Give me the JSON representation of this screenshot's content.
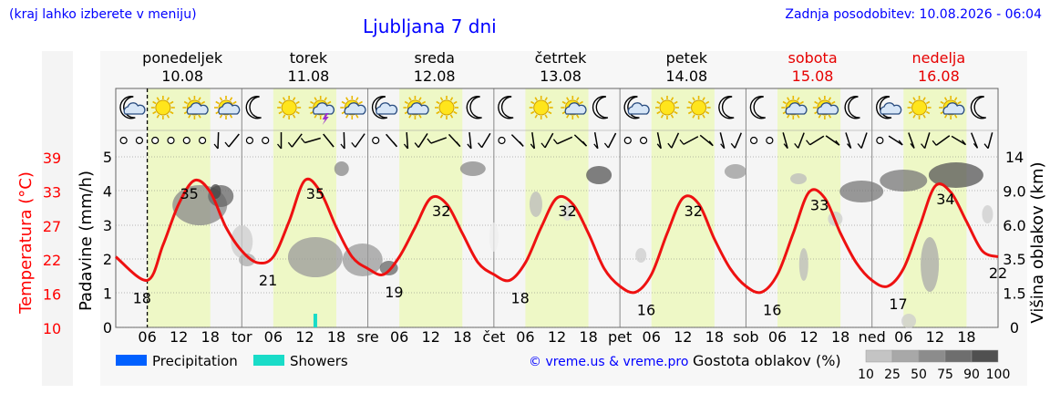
{
  "header": {
    "left_note": "(kraj lahko izberete v meniju)",
    "title": "Ljubljana 7 dni",
    "updated": "Zadnja posodobitev: 10.08.2026 - 06:04"
  },
  "days": [
    {
      "name": "ponedeljek",
      "date": "10.08",
      "weekend": false
    },
    {
      "name": "torek",
      "date": "11.08",
      "weekend": false
    },
    {
      "name": "sreda",
      "date": "12.08",
      "weekend": false
    },
    {
      "name": "četrtek",
      "date": "13.08",
      "weekend": false
    },
    {
      "name": "petek",
      "date": "14.08",
      "weekend": false
    },
    {
      "name": "sobota",
      "date": "15.08",
      "weekend": true
    },
    {
      "name": "nedelja",
      "date": "16.08",
      "weekend": true
    }
  ],
  "x_day_abbr": [
    "tor",
    "sre",
    "čet",
    "pet",
    "sob",
    "ned"
  ],
  "x_hour_ticks": [
    "06",
    "12",
    "18"
  ],
  "left_axis_temp": {
    "label": "Temperatura (°C)",
    "ticks": [
      "39",
      "33",
      "27",
      "22",
      "16",
      "10"
    ],
    "color": "#ff0000"
  },
  "left_axis_precip": {
    "label": "Padavine (mm/h)",
    "ticks": [
      "5",
      "4",
      "3",
      "2",
      "1",
      "0"
    ]
  },
  "right_axis_cloud": {
    "label": "Višina oblakov (km)",
    "ticks": [
      "14",
      "9.0",
      "6.0",
      "3.5",
      "1.5",
      "0"
    ]
  },
  "weather_icons": [
    [
      "moon-cloud-icon",
      "sun-icon",
      "sun-cloud-icon",
      "sun-cloud-icon"
    ],
    [
      "moon-icon",
      "sun-icon",
      "sun-thunder-icon",
      "sun-cloud-icon"
    ],
    [
      "moon-cloud-icon",
      "sun-cloud-icon",
      "sun-icon",
      "moon-icon"
    ],
    [
      "moon-icon",
      "sun-icon",
      "sun-cloud-icon",
      "moon-icon"
    ],
    [
      "moon-cloud-icon",
      "sun-icon",
      "sun-icon",
      "moon-icon"
    ],
    [
      "moon-icon",
      "sun-cloud-icon",
      "sun-cloud-icon",
      "moon-icon"
    ],
    [
      "moon-cloud-icon",
      "sun-icon",
      "sun-cloud-icon",
      "moon-icon"
    ]
  ],
  "chart_data": {
    "type": "line",
    "title": "Ljubljana 7 dni",
    "temperature_series": {
      "name": "Temperatura",
      "color": "#ee1111",
      "unit": "°C",
      "x_hours": [
        0,
        6,
        9,
        12,
        15,
        18,
        21,
        24,
        27,
        30,
        33,
        36,
        39,
        42,
        45,
        48,
        51,
        54,
        57,
        60,
        63,
        66,
        69,
        72,
        75,
        78,
        81,
        84,
        87,
        90,
        93,
        96,
        99,
        102,
        105,
        108,
        111,
        114,
        117,
        120,
        123,
        126,
        129,
        132,
        135,
        138,
        141,
        144,
        147,
        150,
        153,
        156,
        159,
        162,
        165,
        168
      ],
      "values": [
        22,
        18,
        24,
        31,
        35,
        33,
        27,
        23,
        21,
        22,
        28,
        35,
        33,
        27,
        22,
        20,
        19,
        22,
        27,
        32,
        31,
        26,
        21,
        19,
        18,
        21,
        27,
        32,
        31,
        26,
        20,
        17,
        16,
        19,
        26,
        32,
        31,
        25,
        20,
        17,
        16,
        19,
        26,
        33,
        32,
        26,
        21,
        18,
        17,
        20,
        27,
        34,
        33,
        28,
        23,
        22
      ],
      "labels": [
        {
          "day": 0,
          "max": "35",
          "min": "18"
        },
        {
          "day": 1,
          "max": "35",
          "min": "21"
        },
        {
          "day": 2,
          "max": "32",
          "min": "19"
        },
        {
          "day": 3,
          "max": "32",
          "min": "18"
        },
        {
          "day": 4,
          "max": "32",
          "min": "16"
        },
        {
          "day": 5,
          "max": "33",
          "min": "16"
        },
        {
          "day": 6,
          "max": "34",
          "min": "17"
        }
      ],
      "end_label": "22",
      "ylim": [
        10,
        39
      ]
    },
    "precipitation_ylim": [
      0,
      5
    ],
    "showers_bars": [
      {
        "hour": 38,
        "value": 0.4
      }
    ],
    "cloud_height_km_ticks": [
      0,
      1.5,
      3.5,
      6.0,
      9.0,
      14
    ],
    "legend": {
      "precipitation": {
        "label": "Precipitation",
        "color": "#0060ff"
      },
      "showers": {
        "label": "Showers",
        "color": "#19dcc8"
      },
      "density_label": "Gostota oblakov (%)",
      "density_ticks": [
        "10",
        "25",
        "50",
        "75",
        "90",
        "100"
      ]
    },
    "copyright": "© vreme.us & vreme.pro",
    "now_marker_hour": 6
  }
}
